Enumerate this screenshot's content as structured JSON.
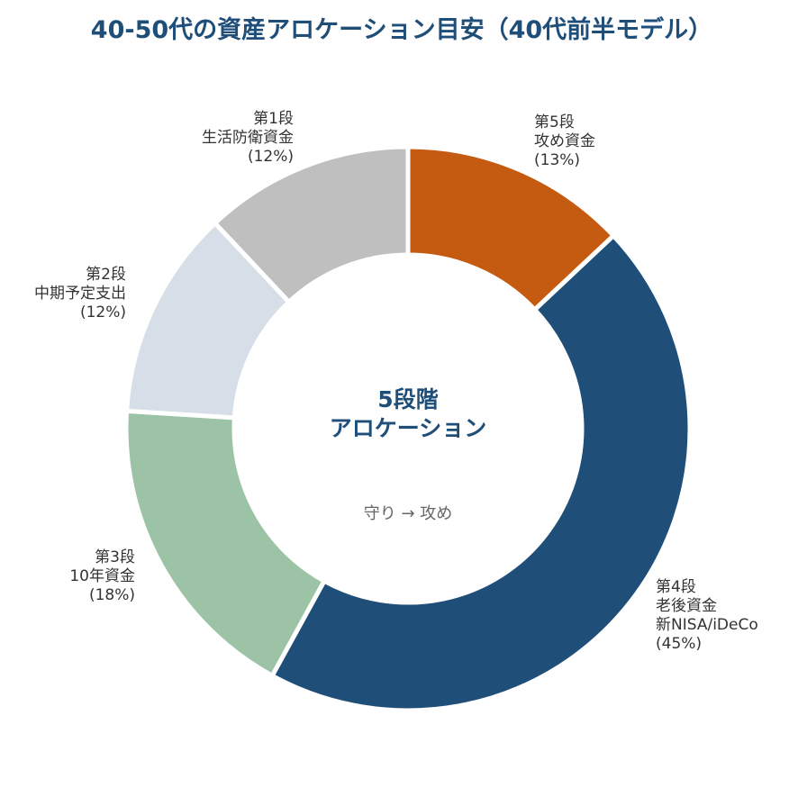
{
  "chart_data": {
    "type": "pie",
    "title": "40-50代の資産アロケーション目安（40代前半モデル）",
    "center_title_lines": [
      "5段階",
      "アロケーション"
    ],
    "center_subtitle": "守り → 攻め",
    "slices": [
      {
        "stage": "第5段",
        "name_lines": [
          "攻め資金"
        ],
        "percent_label": "(13%)",
        "value": 13,
        "color": "#c55a11"
      },
      {
        "stage": "第4段",
        "name_lines": [
          "老後資金",
          "新NISA/iDeCo"
        ],
        "percent_label": "(45%)",
        "value": 45,
        "color": "#1f4e79"
      },
      {
        "stage": "第3段",
        "name_lines": [
          "10年資金"
        ],
        "percent_label": "(18%)",
        "value": 18,
        "color": "#9dc3a6"
      },
      {
        "stage": "第2段",
        "name_lines": [
          "中期予定支出"
        ],
        "percent_label": "(12%)",
        "value": 12,
        "color": "#d6dee8"
      },
      {
        "stage": "第1段",
        "name_lines": [
          "生活防衛資金"
        ],
        "percent_label": "(12%)",
        "value": 12,
        "color": "#bfbfbf"
      }
    ]
  }
}
